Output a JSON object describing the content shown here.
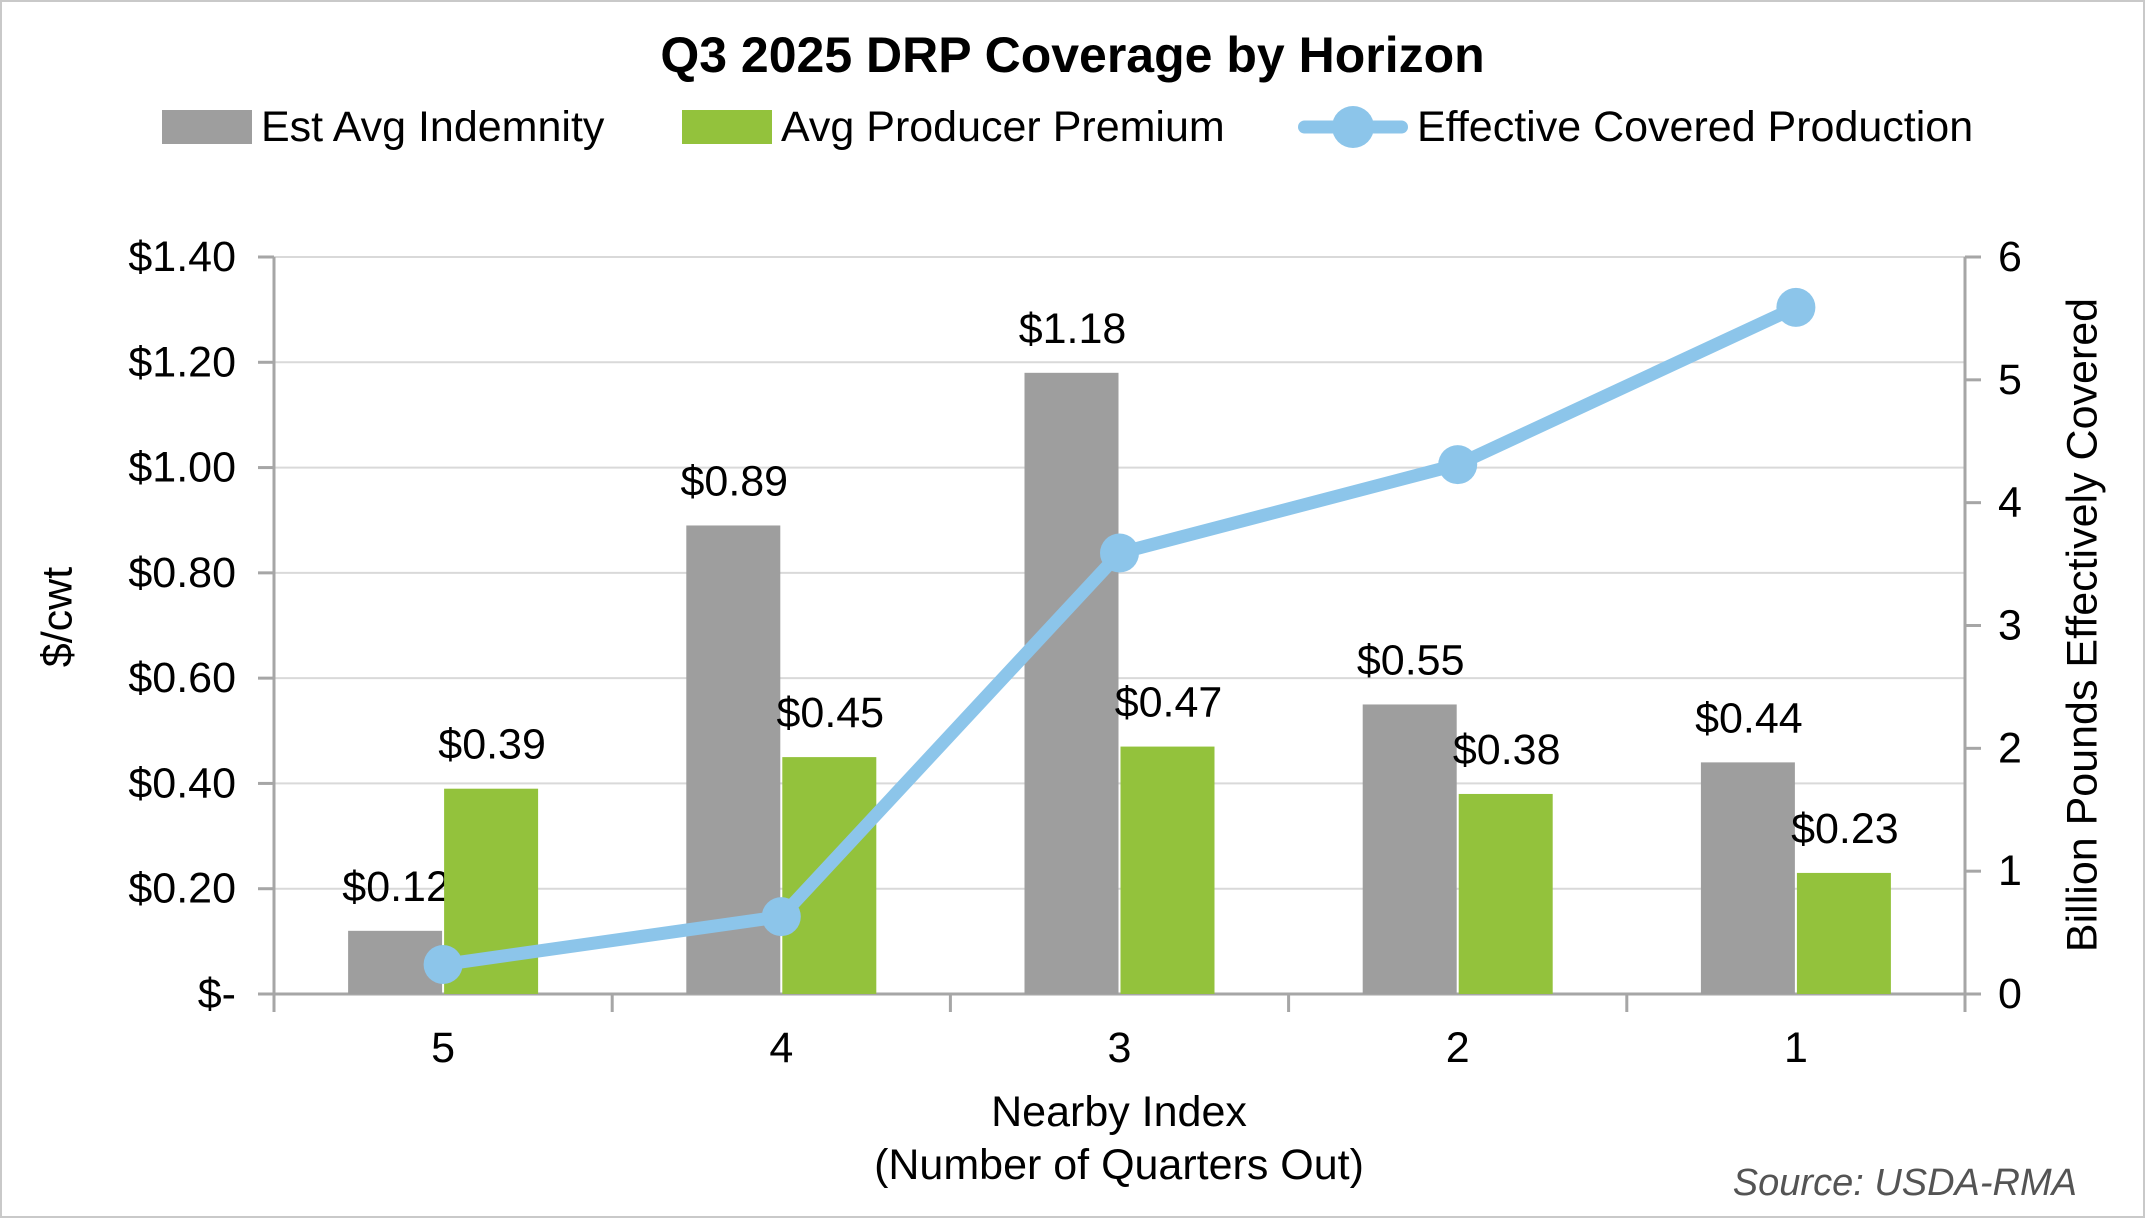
{
  "title": "Q3 2025 DRP Coverage by Horizon",
  "legend": {
    "items": [
      {
        "label": "Est Avg Indemnity",
        "marker": "bar-swatch",
        "color": "#9e9e9e"
      },
      {
        "label": "Avg Producer Premium",
        "marker": "bar-swatch",
        "color": "#93c23c"
      },
      {
        "label": "Effective Covered Production",
        "marker": "line-with-dot",
        "color": "#8cc5ea"
      }
    ]
  },
  "source_note": "Source: USDA-RMA",
  "chart_data": {
    "type": "combo-bar-line",
    "title": "Q3 2025 DRP Coverage by Horizon",
    "categories": [
      "5",
      "4",
      "3",
      "2",
      "1"
    ],
    "series": [
      {
        "name": "Est Avg Indemnity",
        "type": "bar",
        "axis": "left",
        "color": "#9e9e9e",
        "values": [
          0.12,
          0.89,
          1.18,
          0.55,
          0.44
        ],
        "data_labels": [
          "$0.12",
          "$0.89",
          "$1.18",
          "$0.55",
          "$0.44"
        ]
      },
      {
        "name": "Avg Producer Premium",
        "type": "bar",
        "axis": "left",
        "color": "#93c23c",
        "values": [
          0.39,
          0.45,
          0.47,
          0.38,
          0.23
        ],
        "data_labels": [
          "$0.39",
          "$0.45",
          "$0.47",
          "$0.38",
          "$0.23"
        ]
      },
      {
        "name": "Effective Covered Production",
        "type": "line",
        "axis": "right",
        "color": "#8cc5ea",
        "values": [
          0.24,
          0.63,
          3.59,
          4.31,
          5.59
        ]
      }
    ],
    "x_axis": {
      "title_line1": "Nearby Index",
      "title_line2": "(Number of Quarters Out)",
      "tick_labels": [
        "5",
        "4",
        "3",
        "2",
        "1"
      ]
    },
    "left_axis": {
      "title": "$/cwt",
      "min": 0,
      "max": 1.4,
      "step": 0.2,
      "tick_labels": [
        "$1.40",
        "$1.20",
        "$1.00",
        "$0.80",
        "$0.60",
        "$0.40",
        "$0.20",
        "$-"
      ]
    },
    "right_axis": {
      "title": "Billion Pounds Effectively Covered",
      "min": 0,
      "max": 6,
      "step": 1,
      "tick_labels": [
        "6",
        "5",
        "4",
        "3",
        "2",
        "1",
        "0"
      ]
    },
    "grid": true,
    "legend_position": "top",
    "colors": {
      "grid": "#d9d9d9",
      "axis": "#a6a6a6",
      "text": "#000000",
      "source": "#545454"
    }
  }
}
